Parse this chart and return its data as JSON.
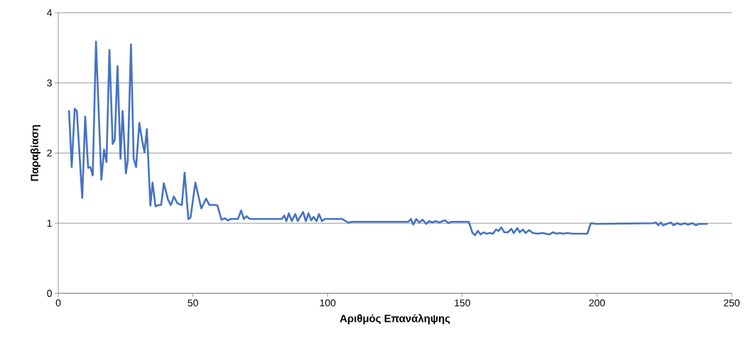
{
  "chart_data": {
    "type": "line",
    "xlabel": "Αριθμός Επανάληψης",
    "ylabel": "Παραβίαση",
    "xlim": [
      0,
      250
    ],
    "ylim": [
      0,
      4
    ],
    "xticks": [
      0,
      50,
      100,
      150,
      200,
      250
    ],
    "yticks": [
      0,
      1,
      2,
      3,
      4
    ],
    "grid": "y",
    "line_style": "solid",
    "color": "#4472c4",
    "x": [
      4.0,
      5.0,
      6.1,
      6.9,
      8.9,
      10.0,
      11.1,
      11.9,
      12.8,
      14.0,
      16.0,
      17.0,
      17.9,
      19.0,
      20.2,
      21.0,
      22.0,
      23.1,
      23.9,
      25.1,
      25.8,
      27.0,
      28.0,
      28.9,
      30.1,
      31.1,
      32.0,
      32.9,
      34.2,
      35.0,
      36.1,
      37.3,
      38.2,
      39.2,
      40.8,
      41.8,
      42.9,
      44.3,
      45.9,
      46.9,
      48.3,
      49.1,
      50.9,
      53.1,
      54.9,
      56.1,
      58.4,
      59.1,
      60.6,
      61.9,
      62.9,
      64.1,
      66.7,
      67.9,
      68.9,
      69.9,
      71.1,
      75.9,
      83.0,
      83.9,
      84.7,
      85.6,
      86.7,
      88.0,
      88.9,
      90.9,
      91.9,
      92.9,
      93.9,
      94.8,
      95.9,
      96.8,
      97.9,
      99.0,
      105.4,
      107.6,
      109.3,
      114.6,
      130.0,
      130.9,
      131.8,
      132.9,
      134.0,
      135.3,
      136.6,
      137.7,
      138.8,
      140.1,
      141.4,
      142.7,
      143.6,
      144.9,
      145.8,
      152.4,
      153.8,
      154.7,
      155.8,
      156.8,
      157.9,
      159.0,
      160.3,
      161.4,
      162.5,
      163.4,
      164.5,
      165.6,
      166.9,
      168.2,
      169.1,
      170.4,
      171.3,
      172.5,
      173.5,
      174.8,
      176.2,
      177.9,
      179.7,
      181.0,
      182.3,
      183.6,
      185.0,
      186.3,
      187.6,
      188.9,
      191.1,
      196.4,
      197.7,
      199.9,
      221.0,
      221.9,
      222.8,
      223.7,
      224.5,
      225.9,
      227.4,
      228.5,
      229.8,
      231.1,
      232.5,
      233.8,
      235.4,
      236.7,
      237.8,
      240.8
    ],
    "values": [
      2.6,
      1.8,
      2.63,
      2.6,
      1.36,
      2.52,
      1.79,
      1.8,
      1.68,
      3.59,
      1.62,
      2.05,
      1.87,
      3.47,
      2.13,
      2.19,
      3.24,
      1.92,
      2.6,
      1.71,
      1.89,
      3.55,
      1.92,
      1.8,
      2.43,
      2.19,
      2.01,
      2.34,
      1.25,
      1.58,
      1.24,
      1.26,
      1.26,
      1.57,
      1.33,
      1.26,
      1.38,
      1.28,
      1.26,
      1.72,
      1.06,
      1.08,
      1.58,
      1.21,
      1.35,
      1.26,
      1.26,
      1.25,
      1.05,
      1.07,
      1.04,
      1.06,
      1.06,
      1.18,
      1.06,
      1.1,
      1.06,
      1.06,
      1.06,
      1.11,
      1.03,
      1.14,
      1.03,
      1.13,
      1.03,
      1.16,
      1.03,
      1.14,
      1.04,
      1.09,
      1.03,
      1.13,
      1.03,
      1.06,
      1.06,
      1.01,
      1.02,
      1.02,
      1.02,
      1.06,
      0.98,
      1.06,
      1.01,
      1.05,
      0.99,
      1.03,
      1.01,
      1.03,
      1.01,
      1.03,
      1.04,
      1.0,
      1.02,
      1.02,
      0.86,
      0.83,
      0.89,
      0.84,
      0.87,
      0.85,
      0.86,
      0.85,
      0.91,
      0.89,
      0.94,
      0.87,
      0.87,
      0.92,
      0.86,
      0.93,
      0.87,
      0.91,
      0.86,
      0.9,
      0.86,
      0.85,
      0.86,
      0.85,
      0.84,
      0.87,
      0.85,
      0.86,
      0.85,
      0.86,
      0.85,
      0.85,
      1.0,
      0.99,
      1.0,
      1.01,
      0.97,
      1.01,
      0.97,
      0.99,
      1.01,
      0.97,
      1.0,
      0.98,
      1.0,
      0.98,
      1.0,
      0.97,
      0.99,
      0.99
    ]
  }
}
